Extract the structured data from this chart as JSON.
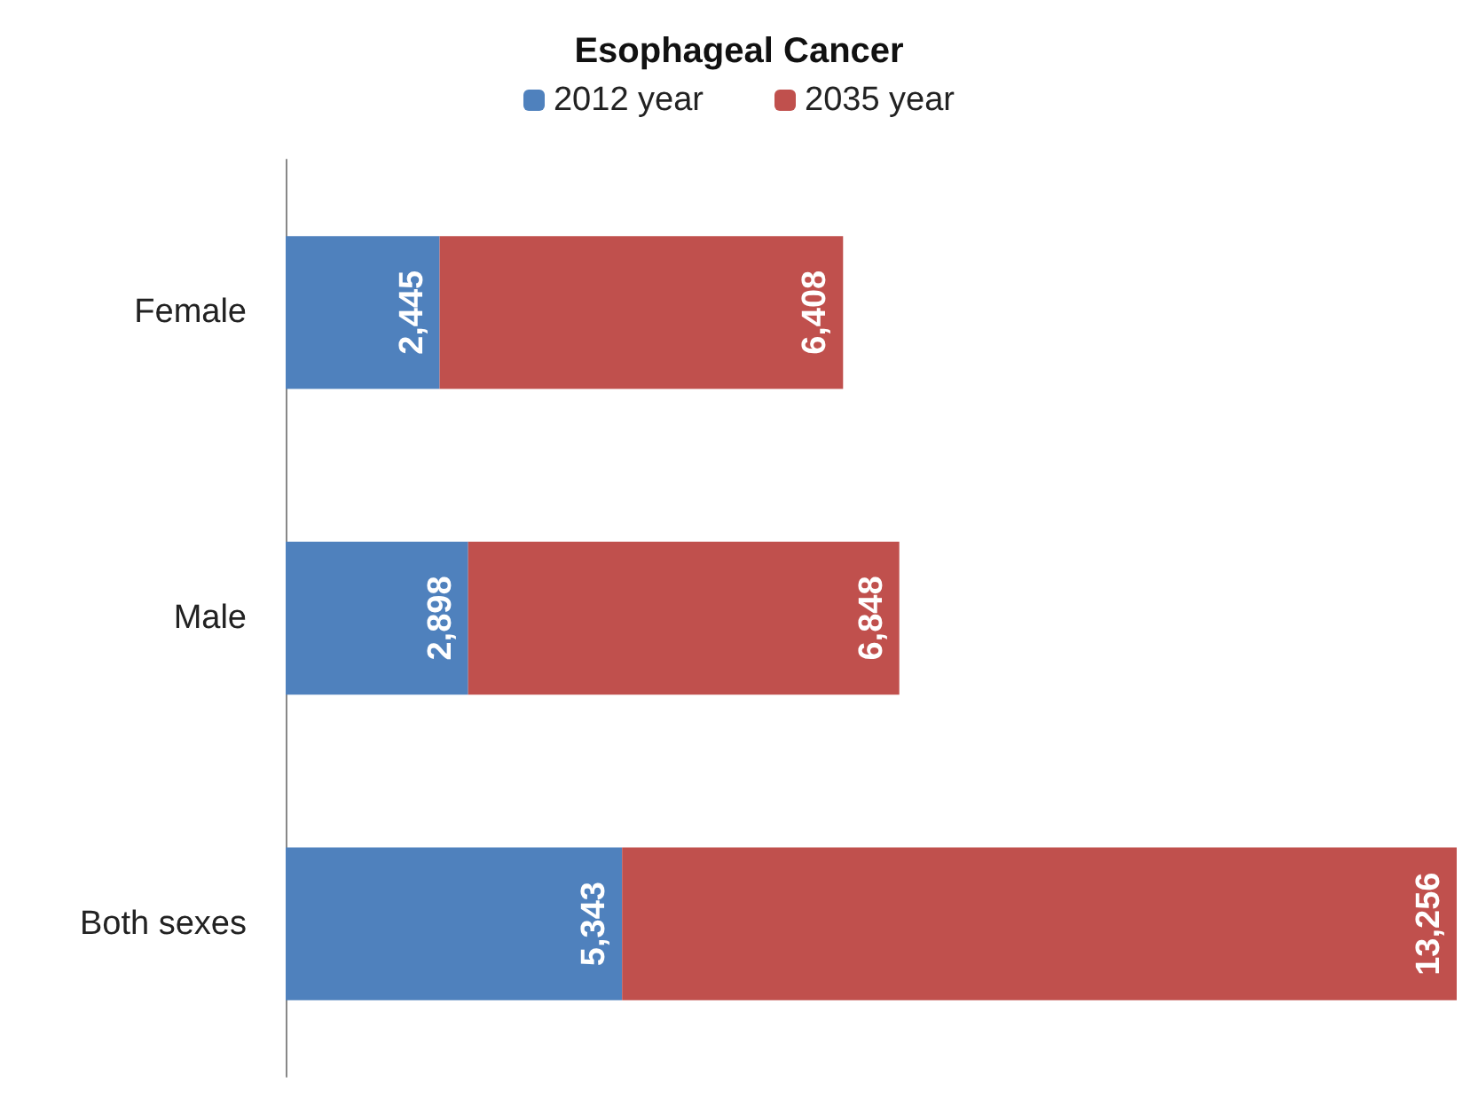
{
  "chart_data": {
    "type": "bar",
    "title": "Esophageal Cancer",
    "orientation": "horizontal",
    "stacked": true,
    "legend": "top",
    "categories": [
      "Female",
      "Male",
      "Both sexes"
    ],
    "series": [
      {
        "name": "2012 year",
        "color": "#4f81bd",
        "values": [
          2445,
          2898,
          5343
        ],
        "value_labels": [
          "2,445",
          "2,898",
          "5,343"
        ]
      },
      {
        "name": "2035 year",
        "color": "#c0504d",
        "values": [
          6408,
          6848,
          13256
        ],
        "value_labels": [
          "6,408",
          "6,848",
          "13,256"
        ]
      }
    ]
  }
}
